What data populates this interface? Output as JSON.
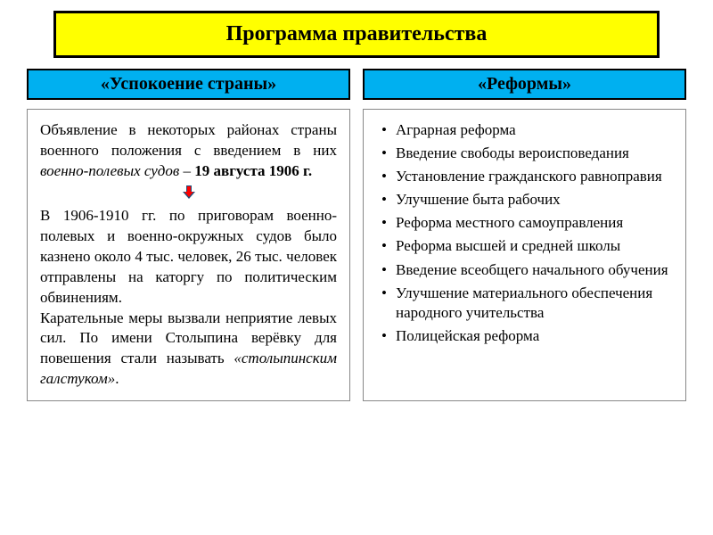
{
  "title": "Программа правительства",
  "left": {
    "subtitle": "«Успокоение страны»",
    "para1_part1": "Объявление в некоторых районах страны военного положения с введением в них ",
    "para1_italic": "военно-полевых судов",
    "para1_part2": " – ",
    "para1_bold": "19 августа 1906 г.",
    "para2": "В 1906-1910 гг. по приговорам военно-полевых и военно-окружных судов было казнено около 4 тыс. человек, 26 тыс. человек отправлены на каторгу по политическим обвинениям.",
    "para3_part1": "Карательные меры вызвали неприятие левых сил. По имени Столыпина верёвку для повешения стали называть ",
    "para3_italic": "«столыпинским галстуком»",
    "para3_part2": "."
  },
  "right": {
    "subtitle": "«Реформы»",
    "items": [
      "Аграрная реформа",
      "Введение свободы вероисповедания",
      "Установление гражданского равноправия",
      "Улучшение быта рабочих",
      "Реформа местного самоуправления",
      "Реформа высшей и средней школы",
      "Введение всеобщего начального обучения",
      "Улучшение материального обеспечения народного учительства",
      "Полицейская реформа"
    ]
  },
  "colors": {
    "title_bg": "#ffff00",
    "subtitle_bg": "#00b0f0",
    "border": "#000000",
    "arrow_fill": "#ff0000",
    "arrow_border": "#1f4e79"
  }
}
